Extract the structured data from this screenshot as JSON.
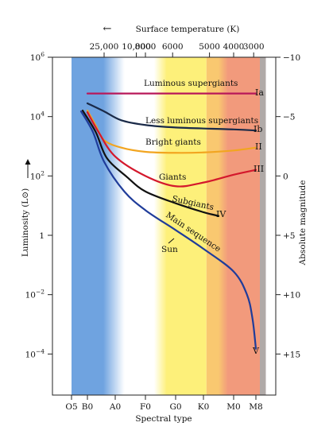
{
  "chart_data": {
    "type": "line",
    "xlabel": "Spectral type",
    "ylabel": "Luminosity (L⊙)",
    "x2label": "Surface temperature (K)",
    "y2label": "Absolute magnitude",
    "x_axis": {
      "ticks": [
        "O5",
        "B0",
        "A0",
        "F0",
        "G0",
        "K0",
        "M0",
        "M8"
      ],
      "range": [
        "O5",
        "M8"
      ]
    },
    "y_axis": {
      "scale": "log",
      "range": [
        3e-05,
        1000000
      ],
      "ticks": [
        {
          "value": 1000000,
          "mant": "10",
          "exp": "6"
        },
        {
          "value": 10000,
          "mant": "10",
          "exp": "4"
        },
        {
          "value": 100,
          "mant": "10",
          "exp": "2"
        },
        {
          "value": 1,
          "mant": "1",
          "exp": ""
        },
        {
          "value": 0.01,
          "mant": "10",
          "exp": "−2"
        },
        {
          "value": 0.0001,
          "mant": "10",
          "exp": "−4"
        }
      ]
    },
    "top_axis": {
      "arrow_text": "←",
      "ticks": [
        {
          "label": "25,000",
          "at": "B0.6"
        },
        {
          "label": "10,000",
          "at": "A0.7"
        },
        {
          "label": "8000",
          "at": "F0"
        },
        {
          "label": "6000",
          "at": "F0.9"
        },
        {
          "label": "5000",
          "at": "K0.2"
        },
        {
          "label": "4000",
          "at": "M0"
        },
        {
          "label": "3000",
          "at": "M0.9"
        }
      ]
    },
    "right_axis": {
      "ticks": [
        {
          "label": "−10",
          "luminosity": 1000000
        },
        {
          "label": "−5",
          "luminosity": 10000
        },
        {
          "label": "0",
          "luminosity": 100
        },
        {
          "label": "+5",
          "luminosity": 1
        },
        {
          "label": "+10",
          "luminosity": 0.01
        },
        {
          "label": "+15",
          "luminosity": 0.0001
        }
      ]
    },
    "background_bands": [
      {
        "from": "O5",
        "to": "B0.8",
        "color": "#6fa3e0"
      },
      {
        "from": "B0.8",
        "to": "A0.3",
        "color": "#cfe3f6"
      },
      {
        "from": "A0.3",
        "to": "F0.6",
        "color": "#ffffff"
      },
      {
        "from": "F0.6",
        "to": "K0.1",
        "color": "#fdf07a"
      },
      {
        "from": "K0.1",
        "to": "K0.6",
        "color": "#f9c870"
      },
      {
        "from": "K0.6",
        "to": "M8.2",
        "color": "#f29a7c"
      },
      {
        "from": "M8.2",
        "to": "M8.5",
        "color": "#b0aaa8"
      }
    ],
    "series": [
      {
        "name": "Luminous supergiants",
        "class": "Ia",
        "color": "#b8185a",
        "points": [
          [
            "B0",
            60000
          ],
          [
            "M8",
            60000
          ]
        ]
      },
      {
        "name": "Less luminous supergiants",
        "class": "Ib",
        "color": "#1a2a48",
        "points": [
          [
            "B0",
            28000
          ],
          [
            "B0.6",
            15000
          ],
          [
            "A0.2",
            7500
          ],
          [
            "F0",
            5200
          ],
          [
            "G0",
            4300
          ],
          [
            "M0",
            3700
          ],
          [
            "M8",
            3400
          ]
        ]
      },
      {
        "name": "Bright giants",
        "class": "II",
        "color": "#f2a520",
        "points": [
          [
            "B0",
            16000
          ],
          [
            "B0.3",
            5000
          ],
          [
            "B0.6",
            1600
          ],
          [
            "A0.2",
            900
          ],
          [
            "F0",
            650
          ],
          [
            "G0",
            600
          ],
          [
            "K0",
            620
          ],
          [
            "M0",
            720
          ],
          [
            "M8",
            900
          ]
        ]
      },
      {
        "name": "Giants",
        "class": "III",
        "color": "#d4182c",
        "points": [
          [
            "B0",
            14000
          ],
          [
            "B0.4",
            3000
          ],
          [
            "A0",
            450
          ],
          [
            "F0",
            100
          ],
          [
            "G0",
            45
          ],
          [
            "K0",
            60
          ],
          [
            "M0",
            110
          ],
          [
            "M8",
            160
          ]
        ]
      },
      {
        "name": "Subgiants",
        "class": "IV",
        "color": "#111111",
        "points": [
          [
            "O5.7",
            16000
          ],
          [
            "B0.3",
            3000
          ],
          [
            "B0.7",
            400
          ],
          [
            "A0.4",
            90
          ],
          [
            "F0",
            30
          ],
          [
            "G0",
            12
          ],
          [
            "K0",
            6
          ],
          [
            "K0.5",
            4.5
          ]
        ]
      },
      {
        "name": "Main sequence",
        "class": "V",
        "color": "#1f3c9a",
        "points": [
          [
            "O5.6",
            15000
          ],
          [
            "B0.2",
            3000
          ],
          [
            "B0.6",
            300
          ],
          [
            "A0.3",
            30
          ],
          [
            "F0",
            7
          ],
          [
            "G0",
            1.5
          ],
          [
            "K0",
            0.35
          ],
          [
            "M0",
            0.06
          ],
          [
            "M0.6",
            0.01
          ],
          [
            "M0.85",
            0.0015
          ],
          [
            "M8",
            0.00015
          ]
        ]
      }
    ],
    "annotations": [
      {
        "text": "Sun",
        "at": [
          "F0.6",
          0.25
        ],
        "marker": [
          "G0",
          1
        ]
      }
    ]
  }
}
